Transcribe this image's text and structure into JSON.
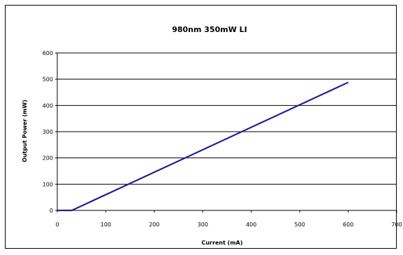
{
  "chart_data": {
    "type": "line",
    "title": "980nm 350mW LI",
    "xlabel": "Current (mA)",
    "ylabel": "Output Power (mW)",
    "xlim": [
      0,
      700
    ],
    "ylim": [
      0,
      600
    ],
    "xticks": [
      "0",
      "100",
      "200",
      "300",
      "400",
      "500",
      "600",
      "700"
    ],
    "yticks": [
      "0",
      "100",
      "200",
      "300",
      "400",
      "500",
      "600"
    ],
    "grid": "horizontal",
    "legend": "none",
    "series": [
      {
        "color": "#1f1f8f",
        "x": [
          0,
          30,
          600
        ],
        "y": [
          0,
          0,
          488
        ]
      }
    ]
  }
}
